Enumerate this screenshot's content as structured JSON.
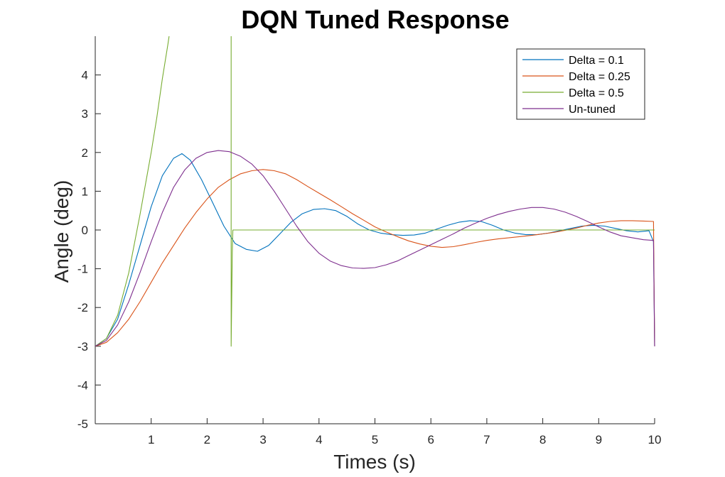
{
  "chart_data": {
    "type": "line",
    "title": "DQN Tuned Response",
    "xlabel": "Times (s)",
    "ylabel": "Angle (deg)",
    "xlim": [
      0,
      10
    ],
    "ylim": [
      -5,
      5
    ],
    "xticks": [
      1,
      2,
      3,
      4,
      5,
      6,
      7,
      8,
      9,
      10
    ],
    "yticks": [
      -5,
      -4,
      -3,
      -2,
      -1,
      0,
      1,
      2,
      3,
      4
    ],
    "grid": false,
    "legend_position": "top-right",
    "series": [
      {
        "name": "Delta = 0.1",
        "color": "#0072BD",
        "x": [
          0,
          0.2,
          0.4,
          0.6,
          0.8,
          1.0,
          1.2,
          1.4,
          1.55,
          1.7,
          1.9,
          2.1,
          2.3,
          2.5,
          2.7,
          2.9,
          3.1,
          3.3,
          3.5,
          3.7,
          3.9,
          4.1,
          4.3,
          4.5,
          4.7,
          4.9,
          5.1,
          5.3,
          5.5,
          5.7,
          5.9,
          6.1,
          6.3,
          6.5,
          6.7,
          6.9,
          7.1,
          7.3,
          7.5,
          7.7,
          7.9,
          8.1,
          8.3,
          8.5,
          8.7,
          8.9,
          9.1,
          9.3,
          9.5,
          9.7,
          9.9,
          9.98,
          10.0
        ],
        "y": [
          -3.0,
          -2.8,
          -2.3,
          -1.4,
          -0.4,
          0.6,
          1.4,
          1.85,
          1.97,
          1.8,
          1.3,
          0.7,
          0.1,
          -0.35,
          -0.5,
          -0.55,
          -0.4,
          -0.1,
          0.2,
          0.42,
          0.53,
          0.55,
          0.5,
          0.35,
          0.15,
          0.0,
          -0.08,
          -0.12,
          -0.14,
          -0.13,
          -0.08,
          0.02,
          0.12,
          0.2,
          0.24,
          0.22,
          0.12,
          0.0,
          -0.08,
          -0.12,
          -0.12,
          -0.08,
          -0.02,
          0.04,
          0.1,
          0.12,
          0.1,
          0.04,
          -0.02,
          -0.05,
          -0.02,
          -0.3,
          -3.0
        ]
      },
      {
        "name": "Delta = 0.25",
        "color": "#D95319",
        "x": [
          0,
          0.2,
          0.4,
          0.6,
          0.8,
          1.0,
          1.2,
          1.4,
          1.6,
          1.8,
          2.0,
          2.2,
          2.4,
          2.6,
          2.8,
          3.0,
          3.2,
          3.4,
          3.6,
          3.8,
          4.0,
          4.2,
          4.4,
          4.6,
          4.8,
          5.0,
          5.2,
          5.4,
          5.6,
          5.8,
          6.0,
          6.2,
          6.4,
          6.6,
          6.8,
          7.0,
          7.2,
          7.4,
          7.6,
          7.8,
          8.0,
          8.2,
          8.4,
          8.6,
          8.8,
          9.0,
          9.2,
          9.4,
          9.6,
          9.8,
          9.98,
          10.0
        ],
        "y": [
          -3.0,
          -2.9,
          -2.65,
          -2.3,
          -1.85,
          -1.35,
          -0.85,
          -0.4,
          0.05,
          0.45,
          0.8,
          1.1,
          1.3,
          1.45,
          1.53,
          1.56,
          1.53,
          1.45,
          1.3,
          1.12,
          0.95,
          0.78,
          0.6,
          0.42,
          0.25,
          0.08,
          -0.05,
          -0.17,
          -0.28,
          -0.36,
          -0.42,
          -0.45,
          -0.43,
          -0.38,
          -0.32,
          -0.27,
          -0.23,
          -0.2,
          -0.17,
          -0.14,
          -0.1,
          -0.06,
          -0.01,
          0.05,
          0.12,
          0.18,
          0.22,
          0.24,
          0.24,
          0.23,
          0.22,
          -3.0
        ]
      },
      {
        "name": "Delta = 0.5",
        "color": "#77AC30",
        "x": [
          0,
          0.2,
          0.4,
          0.6,
          0.8,
          1.0,
          1.1,
          1.2,
          1.3,
          1.32,
          null,
          2.43,
          2.43,
          2.45,
          2.46,
          3.0,
          4.0,
          5.0,
          6.0,
          7.0,
          8.0,
          9.0,
          10.0
        ],
        "y": [
          -3.0,
          -2.8,
          -2.2,
          -1.1,
          0.4,
          2.0,
          2.9,
          3.9,
          4.8,
          5.0,
          null,
          5.0,
          -3.0,
          -0.6,
          0.0,
          0.0,
          0.0,
          0.0,
          0.0,
          0.0,
          0.0,
          0.0,
          0.0
        ]
      },
      {
        "name": "Un-tuned",
        "color": "#7E2F8E",
        "x": [
          0,
          0.2,
          0.4,
          0.6,
          0.8,
          1.0,
          1.2,
          1.4,
          1.6,
          1.8,
          2.0,
          2.2,
          2.4,
          2.6,
          2.8,
          3.0,
          3.2,
          3.4,
          3.6,
          3.8,
          4.0,
          4.2,
          4.4,
          4.6,
          4.8,
          5.0,
          5.2,
          5.4,
          5.6,
          5.8,
          6.0,
          6.2,
          6.4,
          6.6,
          6.8,
          7.0,
          7.2,
          7.4,
          7.6,
          7.8,
          8.0,
          8.2,
          8.4,
          8.6,
          8.8,
          9.0,
          9.2,
          9.4,
          9.6,
          9.8,
          9.98,
          10.0
        ],
        "y": [
          -3.0,
          -2.85,
          -2.45,
          -1.85,
          -1.1,
          -0.3,
          0.45,
          1.1,
          1.55,
          1.85,
          2.0,
          2.05,
          2.02,
          1.9,
          1.7,
          1.4,
          1.0,
          0.55,
          0.1,
          -0.3,
          -0.6,
          -0.8,
          -0.92,
          -0.98,
          -0.99,
          -0.97,
          -0.9,
          -0.8,
          -0.66,
          -0.52,
          -0.38,
          -0.24,
          -0.1,
          0.05,
          0.18,
          0.3,
          0.4,
          0.48,
          0.54,
          0.58,
          0.58,
          0.54,
          0.46,
          0.35,
          0.22,
          0.08,
          -0.05,
          -0.15,
          -0.2,
          -0.25,
          -0.27,
          -3.0
        ]
      }
    ]
  }
}
